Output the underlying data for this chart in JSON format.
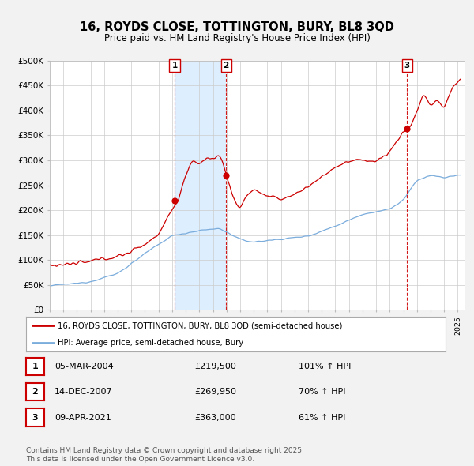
{
  "title": "16, ROYDS CLOSE, TOTTINGTON, BURY, BL8 3QD",
  "subtitle": "Price paid vs. HM Land Registry's House Price Index (HPI)",
  "background_color": "#f2f2f2",
  "plot_bg_color": "#ffffff",
  "ylim": [
    0,
    500000
  ],
  "ytick_vals": [
    0,
    50000,
    100000,
    150000,
    200000,
    250000,
    300000,
    350000,
    400000,
    450000,
    500000
  ],
  "ytick_labels": [
    "£0",
    "£50K",
    "£100K",
    "£150K",
    "£200K",
    "£250K",
    "£300K",
    "£350K",
    "£400K",
    "£450K",
    "£500K"
  ],
  "xlim_start": 1995,
  "xlim_end": 2025.5,
  "legend_entry1": "16, ROYDS CLOSE, TOTTINGTON, BURY, BL8 3QD (semi-detached house)",
  "legend_entry2": "HPI: Average price, semi-detached house, Bury",
  "line1_color": "#cc0000",
  "line2_color": "#7aacdc",
  "shade_color": "#ddeeff",
  "marker_color": "#cc0000",
  "vline_color": "#cc0000",
  "transactions": [
    {
      "num": 1,
      "date": "05-MAR-2004",
      "price": 219500,
      "price_str": "£219,500",
      "pct": "101%",
      "x": 2004.18
    },
    {
      "num": 2,
      "date": "14-DEC-2007",
      "price": 269950,
      "price_str": "£269,950",
      "pct": "70%",
      "x": 2007.96
    },
    {
      "num": 3,
      "date": "09-APR-2021",
      "price": 363000,
      "price_str": "£363,000",
      "pct": "61%",
      "x": 2021.27
    }
  ],
  "footnote_line1": "Contains HM Land Registry data © Crown copyright and database right 2025.",
  "footnote_line2": "This data is licensed under the Open Government Licence v3.0."
}
